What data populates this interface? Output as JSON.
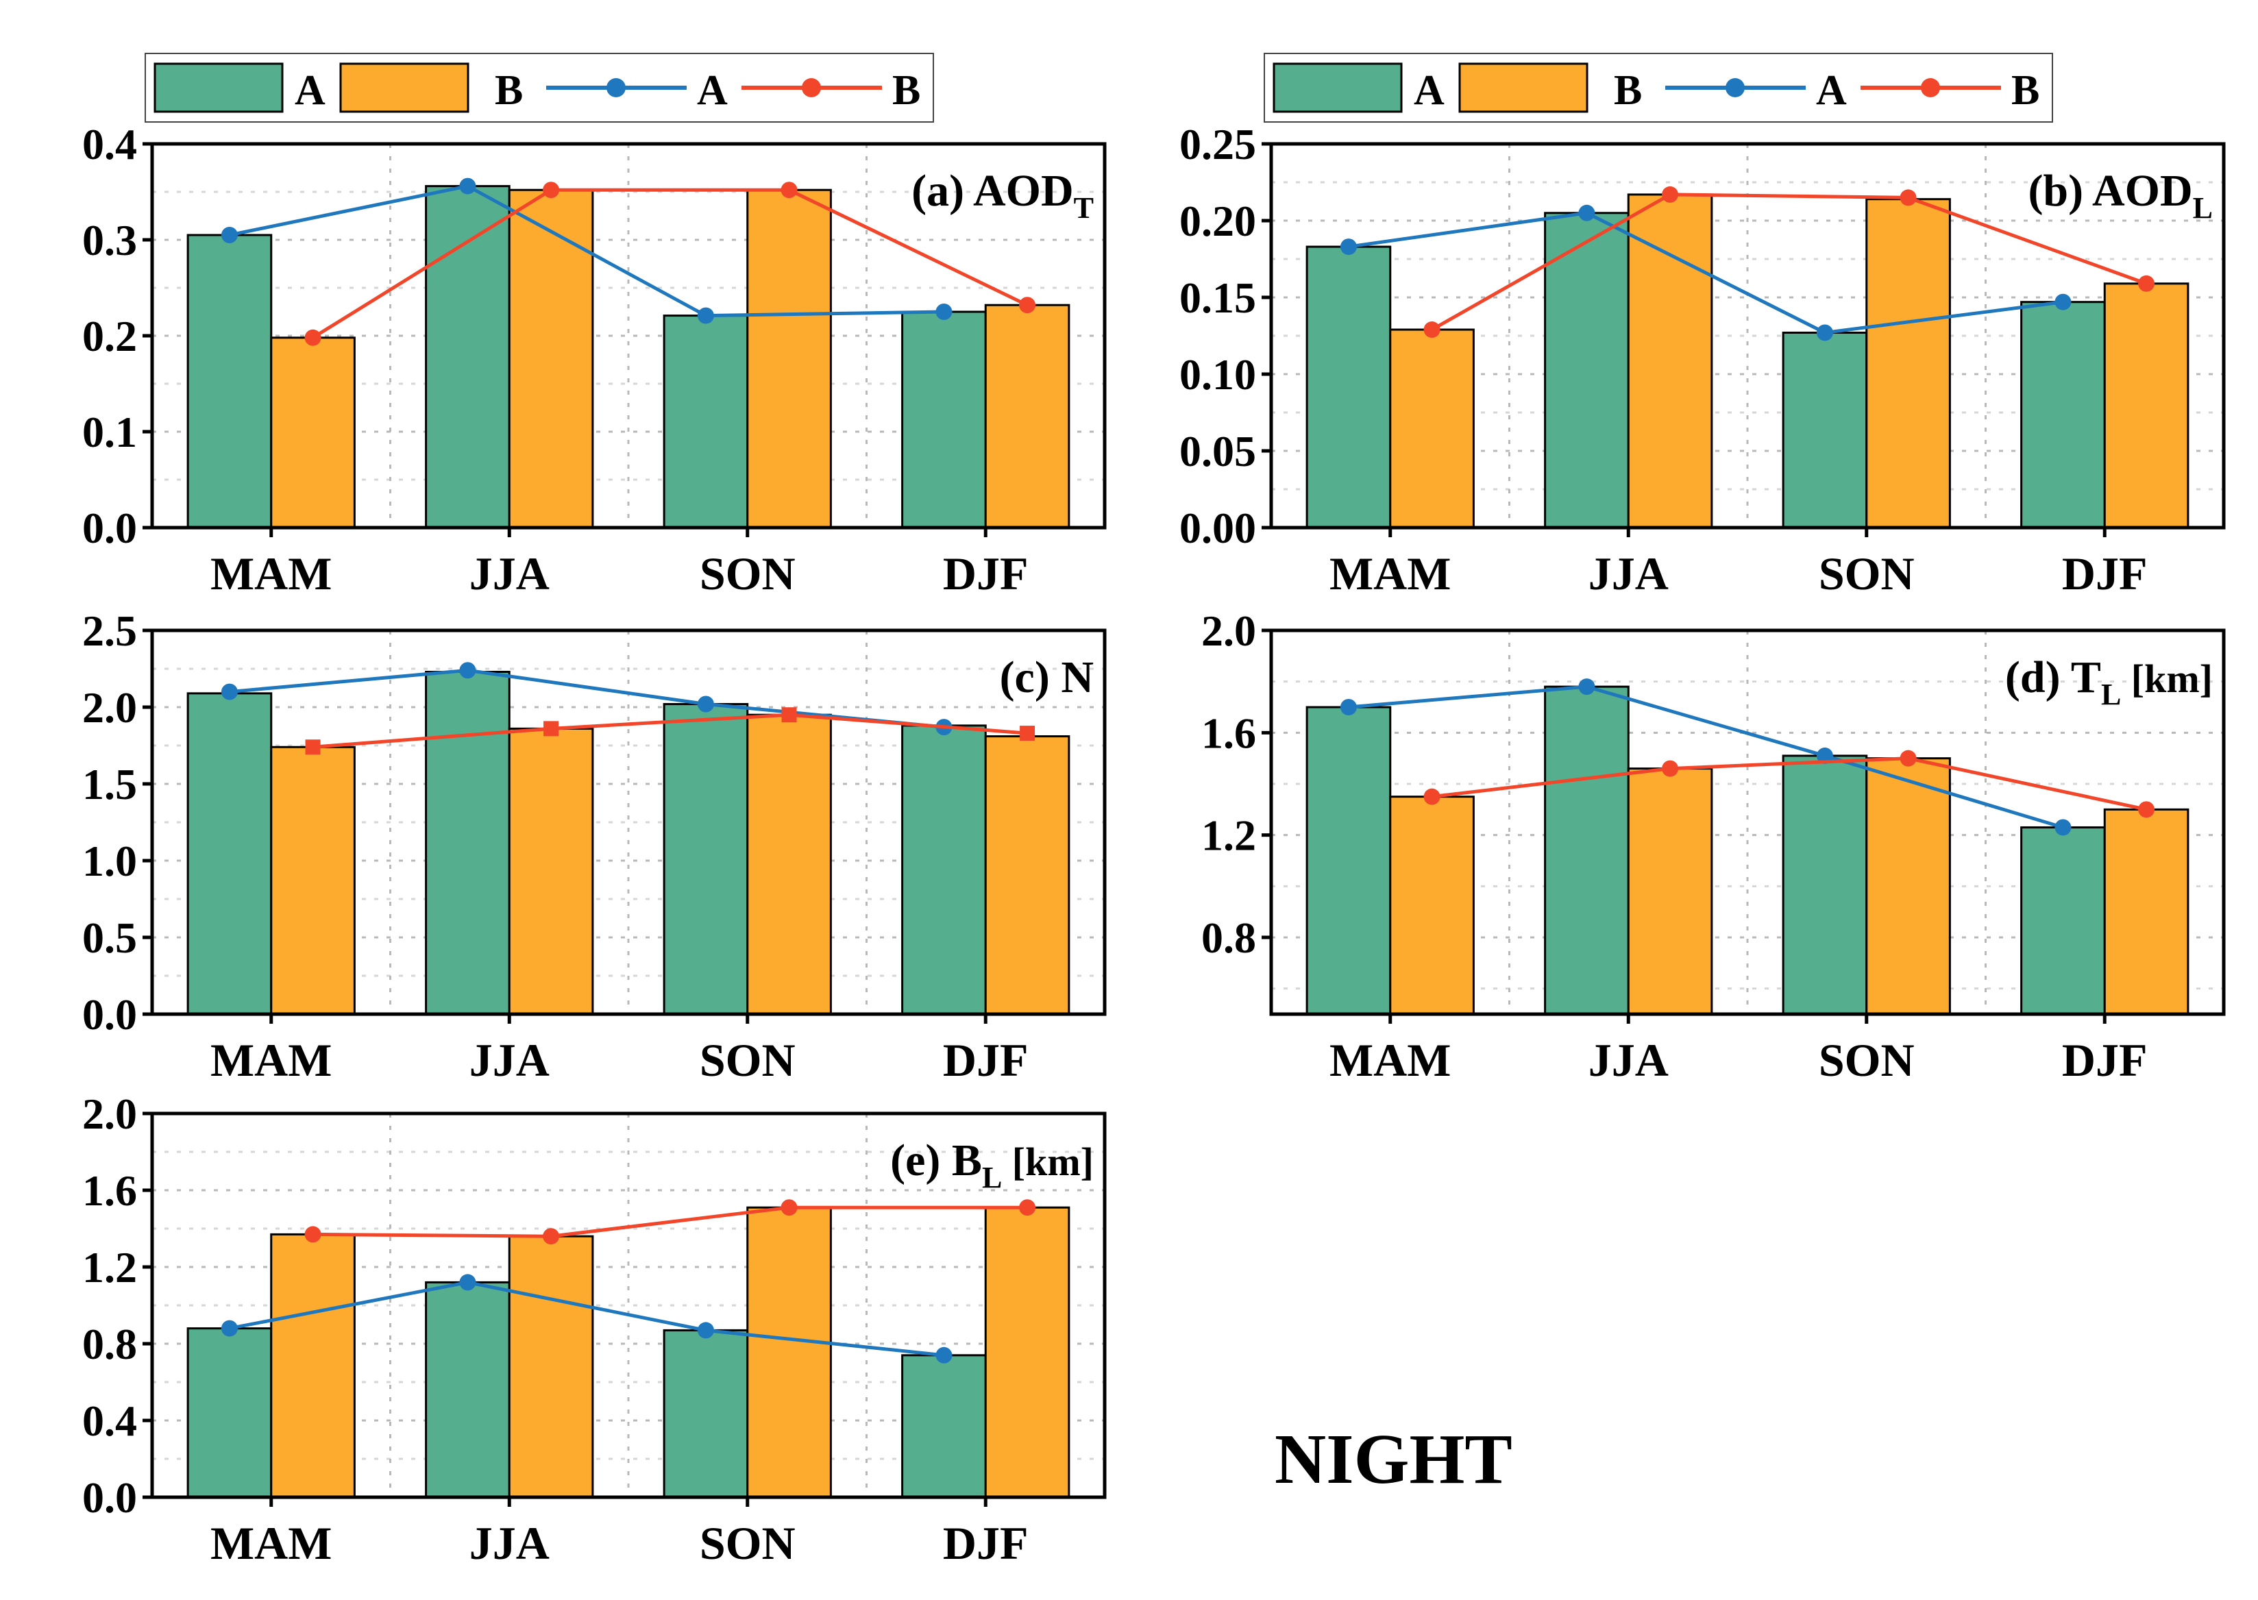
{
  "figure_label": "NIGHT",
  "colors": {
    "bar_a": "#55AF8F",
    "bar_b": "#FDAB2F",
    "line_a": "#1F78BE",
    "line_b": "#F2462A"
  },
  "legend": {
    "entries": [
      "A",
      "B",
      "A",
      "B"
    ]
  },
  "chart_data": [
    {
      "id": "a",
      "type": "bar",
      "title_prefix": "(a)",
      "title_main": "AOD",
      "title_sub": "T",
      "title_suffix": "",
      "categories": [
        "MAM",
        "JJA",
        "SON",
        "DJF"
      ],
      "ylim": [
        0,
        0.4
      ],
      "yticks": [
        {
          "v": 0,
          "label": "0.0"
        },
        {
          "v": 0.1,
          "label": "0.1"
        },
        {
          "v": 0.2,
          "label": "0.2"
        },
        {
          "v": 0.3,
          "label": "0.3"
        },
        {
          "v": 0.4,
          "label": "0.4"
        }
      ],
      "grid": true,
      "bars": [
        {
          "name": "A",
          "values": [
            0.305,
            0.356,
            0.221,
            0.225
          ]
        },
        {
          "name": "B",
          "values": [
            0.198,
            0.352,
            0.352,
            0.232
          ]
        }
      ],
      "lines": [
        {
          "name": "A",
          "values": [
            0.305,
            0.356,
            0.221,
            0.225
          ],
          "marker": "circle"
        },
        {
          "name": "B",
          "values": [
            0.198,
            0.352,
            0.352,
            0.232
          ],
          "marker": "circle"
        }
      ]
    },
    {
      "id": "b",
      "type": "bar",
      "title_prefix": "(b)",
      "title_main": "AOD",
      "title_sub": "L",
      "title_suffix": "",
      "categories": [
        "MAM",
        "JJA",
        "SON",
        "DJF"
      ],
      "ylim": [
        0,
        0.25
      ],
      "yticks": [
        {
          "v": 0,
          "label": "0.00"
        },
        {
          "v": 0.05,
          "label": "0.05"
        },
        {
          "v": 0.1,
          "label": "0.10"
        },
        {
          "v": 0.15,
          "label": "0.15"
        },
        {
          "v": 0.2,
          "label": "0.20"
        },
        {
          "v": 0.25,
          "label": "0.25"
        }
      ],
      "grid": true,
      "bars": [
        {
          "name": "A",
          "values": [
            0.183,
            0.205,
            0.127,
            0.147
          ]
        },
        {
          "name": "B",
          "values": [
            0.129,
            0.217,
            0.214,
            0.159
          ]
        }
      ],
      "lines": [
        {
          "name": "A",
          "values": [
            0.183,
            0.205,
            0.127,
            0.147
          ],
          "marker": "circle"
        },
        {
          "name": "B",
          "values": [
            0.129,
            0.217,
            0.215,
            0.159
          ],
          "marker": "circle"
        }
      ]
    },
    {
      "id": "c",
      "type": "bar",
      "title_prefix": "(c)",
      "title_main": "N",
      "title_sub": "",
      "title_suffix": "",
      "categories": [
        "MAM",
        "JJA",
        "SON",
        "DJF"
      ],
      "ylim": [
        0,
        2.5
      ],
      "yticks": [
        {
          "v": 0,
          "label": "0.0"
        },
        {
          "v": 0.5,
          "label": "0.5"
        },
        {
          "v": 1.0,
          "label": "1.0"
        },
        {
          "v": 1.5,
          "label": "1.5"
        },
        {
          "v": 2.0,
          "label": "2.0"
        },
        {
          "v": 2.5,
          "label": "2.5"
        }
      ],
      "grid": true,
      "bars": [
        {
          "name": "A",
          "values": [
            2.09,
            2.23,
            2.02,
            1.88
          ]
        },
        {
          "name": "B",
          "values": [
            1.74,
            1.86,
            1.95,
            1.81
          ]
        }
      ],
      "lines": [
        {
          "name": "A",
          "values": [
            2.1,
            2.24,
            2.02,
            1.87
          ],
          "marker": "circle"
        },
        {
          "name": "B",
          "values": [
            1.74,
            1.86,
            1.95,
            1.83
          ],
          "marker": "square"
        }
      ]
    },
    {
      "id": "d",
      "type": "bar",
      "title_prefix": "(d)",
      "title_main": "T",
      "title_sub": "L",
      "title_suffix": "[km]",
      "categories": [
        "MAM",
        "JJA",
        "SON",
        "DJF"
      ],
      "ylim": [
        0.5,
        2.0
      ],
      "yticks": [
        {
          "v": 0.8,
          "label": "0.8"
        },
        {
          "v": 1.2,
          "label": "1.2"
        },
        {
          "v": 1.6,
          "label": "1.6"
        },
        {
          "v": 2.0,
          "label": "2.0"
        }
      ],
      "grid": true,
      "bars": [
        {
          "name": "A",
          "values": [
            1.7,
            1.78,
            1.51,
            1.23
          ]
        },
        {
          "name": "B",
          "values": [
            1.35,
            1.46,
            1.5,
            1.3
          ]
        }
      ],
      "lines": [
        {
          "name": "A",
          "values": [
            1.7,
            1.78,
            1.51,
            1.23
          ],
          "marker": "circle"
        },
        {
          "name": "B",
          "values": [
            1.35,
            1.46,
            1.5,
            1.3
          ],
          "marker": "circle"
        }
      ]
    },
    {
      "id": "e",
      "type": "bar",
      "title_prefix": "(e)",
      "title_main": "B",
      "title_sub": "L",
      "title_suffix": "[km]",
      "categories": [
        "MAM",
        "JJA",
        "SON",
        "DJF"
      ],
      "ylim": [
        0,
        2.0
      ],
      "yticks": [
        {
          "v": 0,
          "label": "0.0"
        },
        {
          "v": 0.4,
          "label": "0.4"
        },
        {
          "v": 0.8,
          "label": "0.8"
        },
        {
          "v": 1.2,
          "label": "1.2"
        },
        {
          "v": 1.6,
          "label": "1.6"
        },
        {
          "v": 2.0,
          "label": "2.0"
        }
      ],
      "grid": true,
      "bars": [
        {
          "name": "A",
          "values": [
            0.88,
            1.12,
            0.87,
            0.74
          ]
        },
        {
          "name": "B",
          "values": [
            1.37,
            1.36,
            1.51,
            1.51
          ]
        }
      ],
      "lines": [
        {
          "name": "A",
          "values": [
            0.88,
            1.12,
            0.87,
            0.74
          ],
          "marker": "circle"
        },
        {
          "name": "B",
          "values": [
            1.37,
            1.36,
            1.51,
            1.51
          ],
          "marker": "circle"
        }
      ]
    }
  ]
}
